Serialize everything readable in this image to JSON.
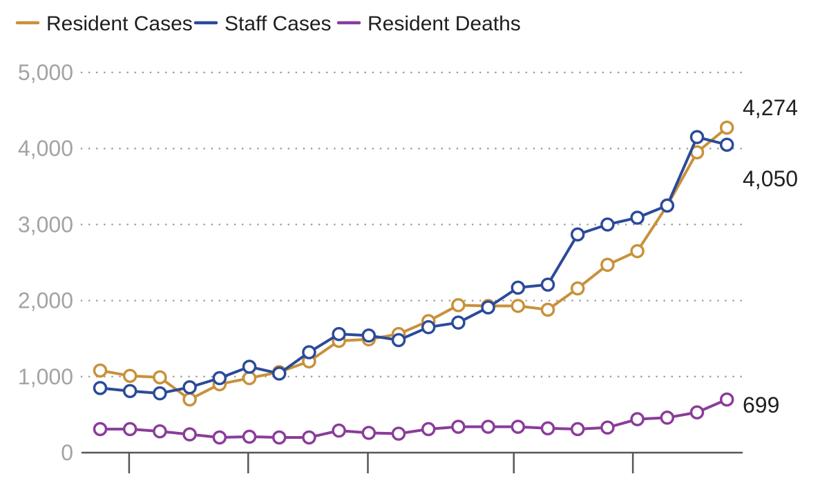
{
  "chart_data": {
    "type": "line",
    "title": "",
    "xlabel": "",
    "ylabel": "",
    "ylim": [
      0,
      5000
    ],
    "y_ticks": [
      "0",
      "1,000",
      "2,000",
      "3,000",
      "4,000",
      "5,000"
    ],
    "grid": true,
    "legend_position": "top-left",
    "series": [
      {
        "name": "Resident Cases",
        "color": "#c8913a",
        "end_label": "4,274",
        "values": [
          1080,
          1010,
          990,
          700,
          900,
          980,
          1060,
          1200,
          1470,
          1490,
          1560,
          1730,
          1940,
          1930,
          1930,
          1880,
          2160,
          2470,
          2650,
          3250,
          3950,
          4274
        ]
      },
      {
        "name": "Staff Cases",
        "color": "#2b4a9a",
        "end_label": "4,050",
        "values": [
          850,
          810,
          780,
          860,
          980,
          1130,
          1040,
          1320,
          1560,
          1540,
          1480,
          1650,
          1710,
          1910,
          2170,
          2210,
          2870,
          3000,
          3090,
          3250,
          4150,
          4050
        ]
      },
      {
        "name": "Resident Deaths",
        "color": "#8a3c9a",
        "end_label": "699",
        "values": [
          310,
          310,
          280,
          240,
          200,
          210,
          200,
          200,
          290,
          260,
          250,
          310,
          340,
          340,
          340,
          320,
          310,
          330,
          440,
          460,
          530,
          699
        ]
      }
    ]
  }
}
